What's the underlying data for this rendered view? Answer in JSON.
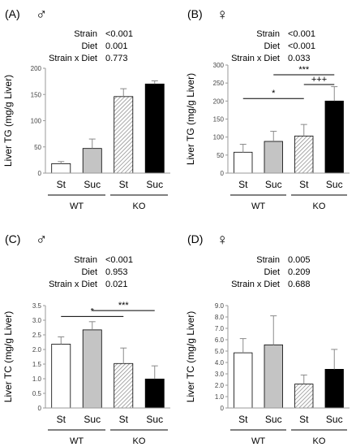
{
  "chart_data": [
    {
      "type": "bar",
      "panel_label": "(A)",
      "sex_symbol": "♂",
      "stats": [
        {
          "term": "Strain",
          "p": "<0.001"
        },
        {
          "term": "Diet",
          "p": "0.001"
        },
        {
          "term": "Strain x Diet",
          "p": "0.773"
        }
      ],
      "ylabel": "Liver TG (mg/g Liver)",
      "ylim": [
        0,
        200
      ],
      "yticks": [
        "0",
        "50",
        "100",
        "150",
        "200"
      ],
      "categories": [
        "St",
        "Suc",
        "St",
        "Suc"
      ],
      "groups": [
        {
          "label": "WT",
          "from": 0,
          "to": 1
        },
        {
          "label": "KO",
          "from": 2,
          "to": 3
        }
      ],
      "fills": [
        "white",
        "gray",
        "hatch",
        "black"
      ],
      "values": [
        18,
        47,
        146,
        170
      ],
      "errors": [
        4,
        18,
        15,
        6
      ],
      "brackets": []
    },
    {
      "type": "bar",
      "panel_label": "(B)",
      "sex_symbol": "♀",
      "stats": [
        {
          "term": "Strain",
          "p": "<0.001"
        },
        {
          "term": "Diet",
          "p": "<0.001"
        },
        {
          "term": "Strain x Diet",
          "p": "0.033"
        }
      ],
      "ylabel": "Liver TG (mg/g Liver)",
      "ylim": [
        0,
        300
      ],
      "yticks": [
        "0",
        "50",
        "100",
        "150",
        "200",
        "250",
        "300"
      ],
      "categories": [
        "St",
        "Suc",
        "St",
        "Suc"
      ],
      "groups": [
        {
          "label": "WT",
          "from": 0,
          "to": 1
        },
        {
          "label": "KO",
          "from": 2,
          "to": 3
        }
      ],
      "fills": [
        "white",
        "gray",
        "hatch",
        "black"
      ],
      "values": [
        58,
        88,
        103,
        200
      ],
      "errors": [
        22,
        28,
        32,
        40
      ],
      "brackets": [
        {
          "from": 0,
          "to": 2,
          "y": 207,
          "label": "*"
        },
        {
          "from": 1,
          "to": 3,
          "y": 273,
          "label": "***"
        },
        {
          "from": 2,
          "to": 3,
          "y": 246,
          "label": "+++"
        }
      ]
    },
    {
      "type": "bar",
      "panel_label": "(C)",
      "sex_symbol": "♂",
      "stats": [
        {
          "term": "Strain",
          "p": "<0.001"
        },
        {
          "term": "Diet",
          "p": "0.953"
        },
        {
          "term": "Strain x Diet",
          "p": "0.021"
        }
      ],
      "ylabel": "Liver TC (mg/g Liver)",
      "ylim": [
        0,
        3.5
      ],
      "yticks": [
        "0",
        "0.5",
        "1.0",
        "1.5",
        "2.0",
        "2.5",
        "3.0",
        "3.5"
      ],
      "categories": [
        "St",
        "Suc",
        "St",
        "Suc"
      ],
      "groups": [
        {
          "label": "WT",
          "from": 0,
          "to": 1
        },
        {
          "label": "KO",
          "from": 2,
          "to": 3
        }
      ],
      "fills": [
        "white",
        "gray",
        "hatch",
        "black"
      ],
      "values": [
        2.18,
        2.67,
        1.52,
        0.99
      ],
      "errors": [
        0.25,
        0.28,
        0.53,
        0.45
      ],
      "brackets": [
        {
          "from": 0,
          "to": 2,
          "y": 3.13,
          "label": "*"
        },
        {
          "from": 1,
          "to": 3,
          "y": 3.33,
          "label": "***"
        }
      ]
    },
    {
      "type": "bar",
      "panel_label": "(D)",
      "sex_symbol": "♀",
      "stats": [
        {
          "term": "Strain",
          "p": "0.005"
        },
        {
          "term": "Diet",
          "p": "0.209"
        },
        {
          "term": "Strain x Diet",
          "p": "0.688"
        }
      ],
      "ylabel": "Liver TC (mg/g Liver)",
      "ylim": [
        0,
        9.0
      ],
      "yticks": [
        "0",
        "1.0",
        "2.0",
        "3.0",
        "4.0",
        "5.0",
        "6.0",
        "7.0",
        "8.0",
        "9.0"
      ],
      "categories": [
        "St",
        "Suc",
        "St",
        "Suc"
      ],
      "groups": [
        {
          "label": "WT",
          "from": 0,
          "to": 1
        },
        {
          "label": "KO",
          "from": 2,
          "to": 3
        }
      ],
      "fills": [
        "white",
        "gray",
        "hatch",
        "black"
      ],
      "values": [
        4.85,
        5.55,
        2.1,
        3.4
      ],
      "errors": [
        1.25,
        2.55,
        0.8,
        1.75
      ],
      "brackets": []
    }
  ]
}
